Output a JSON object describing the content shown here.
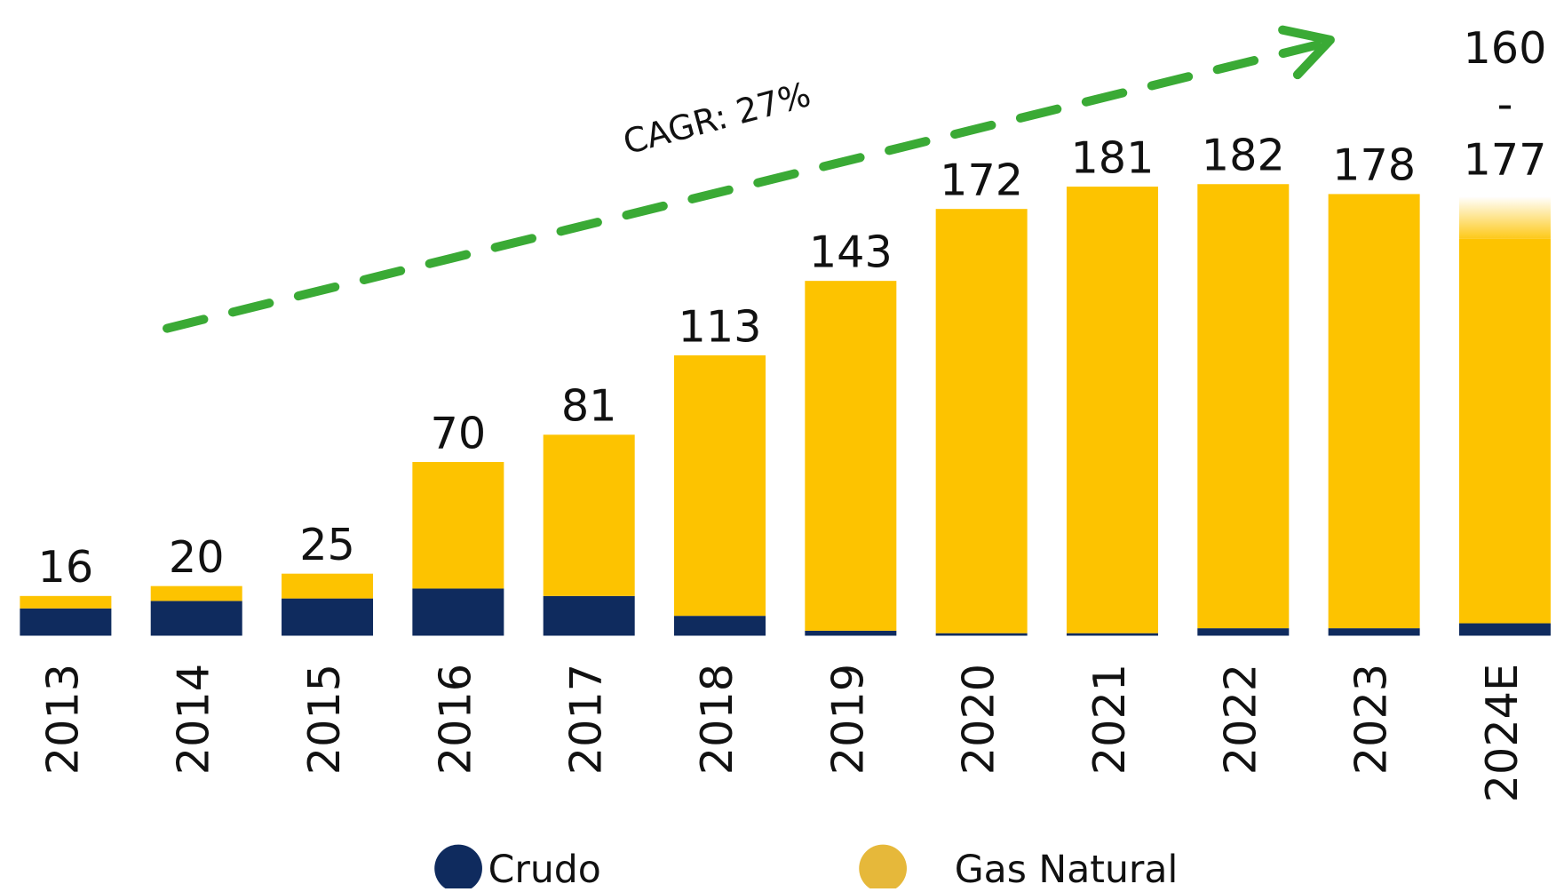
{
  "chart_data": {
    "type": "stacked_bar",
    "categories": [
      "2013",
      "2014",
      "2015",
      "2016",
      "2017",
      "2018",
      "2019",
      "2020",
      "2021",
      "2022",
      "2023",
      "2024E"
    ],
    "series": [
      {
        "name": "Crudo",
        "color": "#0f2b5e",
        "values": [
          11,
          14,
          15,
          19,
          16,
          8,
          2,
          1,
          1,
          3,
          3,
          5
        ]
      },
      {
        "name": "Gas Natural",
        "color": "#fdc300",
        "legend_color": "#e6b83a",
        "values": [
          5,
          6,
          10,
          51,
          65,
          105,
          141,
          171,
          180,
          179,
          175,
          155
        ]
      }
    ],
    "totals": [
      16,
      20,
      25,
      70,
      81,
      113,
      143,
      172,
      181,
      182,
      178,
      null
    ],
    "estimate_range": {
      "low": 160,
      "high": 177,
      "separator": "-"
    },
    "annotation": "CAGR: 27%",
    "annotation_color": "#3aaa35"
  }
}
